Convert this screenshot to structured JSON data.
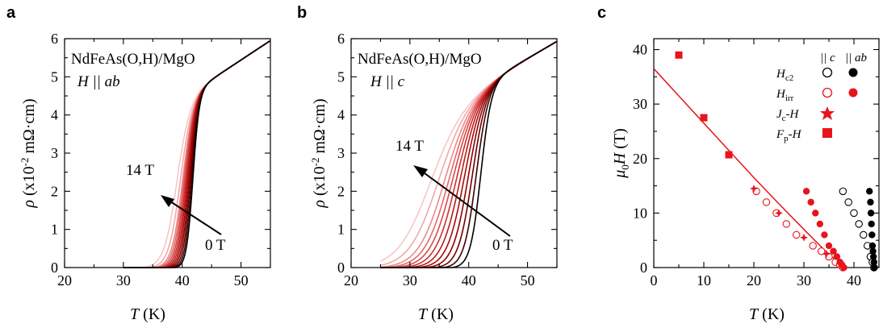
{
  "panels": [
    {
      "letter": "a",
      "title_line1": "NdFeAs(O,H)/MgO",
      "title_line2_prefix": "H",
      "title_line2_suffix": " || ab",
      "xlabel_var": "T",
      "xlabel_unit": " (K)",
      "ylabel_sym": "ρ",
      "ylabel_pre": " (x10",
      "ylabel_exp": "-2",
      "ylabel_post": " mΩ·cm)",
      "label_top": "14 T",
      "label_bottom": "0 T"
    },
    {
      "letter": "b",
      "title_line1": "NdFeAs(O,H)/MgO",
      "title_line2_prefix": "H",
      "title_line2_suffix": " || c",
      "xlabel_var": "T",
      "xlabel_unit": " (K)",
      "ylabel_sym": "ρ",
      "ylabel_pre": " (x10",
      "ylabel_exp": "-2",
      "ylabel_post": " mΩ·cm)",
      "label_top": "14 T",
      "label_bottom": "0 T"
    },
    {
      "letter": "c",
      "xlabel_var": "T",
      "xlabel_unit": " (K)",
      "ylabel_mu": "μ",
      "ylabel_sub": "0",
      "ylabel_H": "H",
      "ylabel_unit": " (T)",
      "legend_col_c": "|| c",
      "legend_col_ab": "|| ab",
      "legend_rows": [
        {
          "main": "H",
          "sub": "c2"
        },
        {
          "main": "H",
          "sub": "irr"
        },
        {
          "main": "J",
          "sub": "c",
          "tail": "-H"
        },
        {
          "main": "F",
          "sub": "p",
          "tail": "-H"
        }
      ]
    }
  ],
  "colors": {
    "black": "#000000",
    "red": "#e8141c",
    "field_gradient": [
      "#000000",
      "#3d0000",
      "#6e0000",
      "#8f0000",
      "#a80a0a",
      "#bd1a1a",
      "#cc2f2f",
      "#d84a4a",
      "#e36a6a",
      "#ec8a8a",
      "#f2a8a8",
      "#f7c6c6"
    ]
  },
  "chart_data": [
    {
      "type": "line",
      "panel": "a",
      "xlim": [
        20,
        55
      ],
      "ylim": [
        0,
        6
      ],
      "xticks": [
        20,
        30,
        40,
        50
      ],
      "yticks": [
        0,
        1,
        2,
        3,
        4,
        5,
        6
      ],
      "fields_T": [
        0,
        1,
        2,
        3,
        4,
        5,
        6,
        7,
        8,
        9,
        11,
        14
      ],
      "t_mid_K": [
        41.8,
        41.6,
        41.4,
        41.2,
        41.0,
        40.8,
        40.6,
        40.4,
        40.2,
        40.0,
        39.6,
        39.0
      ],
      "transition_width_K": [
        0.55,
        0.58,
        0.62,
        0.66,
        0.7,
        0.74,
        0.78,
        0.82,
        0.87,
        0.92,
        1.0,
        1.1
      ],
      "onset_K": 30,
      "normal_state": {
        "T_K": [
          44,
          55
        ],
        "rho": [
          4.6,
          5.72
        ]
      }
    },
    {
      "type": "line",
      "panel": "b",
      "xlim": [
        20,
        55
      ],
      "ylim": [
        0,
        6
      ],
      "xticks": [
        20,
        30,
        40,
        50
      ],
      "yticks": [
        0,
        1,
        2,
        3,
        4,
        5,
        6
      ],
      "fields_T": [
        0,
        1,
        2,
        3,
        4,
        5,
        6,
        7,
        8,
        9,
        11,
        14
      ],
      "t_mid_K": [
        42.0,
        41.2,
        40.5,
        39.8,
        39.1,
        38.4,
        37.7,
        37.0,
        36.3,
        35.5,
        34.3,
        32.8
      ],
      "transition_width_K": [
        0.9,
        1.05,
        1.2,
        1.35,
        1.5,
        1.65,
        1.8,
        1.95,
        2.1,
        2.25,
        2.5,
        2.8
      ],
      "onset_K": 25,
      "normal_state": {
        "T_K": [
          45,
          55
        ],
        "rho": [
          4.8,
          5.7
        ]
      }
    },
    {
      "type": "scatter",
      "panel": "c",
      "xlim": [
        0,
        45
      ],
      "ylim": [
        0,
        42
      ],
      "xticks": [
        0,
        10,
        20,
        30,
        40
      ],
      "yticks": [
        0,
        10,
        20,
        30,
        40
      ],
      "series": [
        {
          "name": "Hc2 || c",
          "marker": "open-circle",
          "color": "black",
          "points": [
            [
              37.8,
              14
            ],
            [
              38.9,
              12
            ],
            [
              40.0,
              10
            ],
            [
              41.0,
              8
            ],
            [
              41.9,
              6
            ],
            [
              42.7,
              4
            ],
            [
              43.3,
              2
            ],
            [
              43.7,
              1
            ],
            [
              44.0,
              0
            ]
          ]
        },
        {
          "name": "Hc2 || ab",
          "marker": "filled-circle",
          "color": "black",
          "points": [
            [
              43.1,
              14
            ],
            [
              43.3,
              12
            ],
            [
              43.4,
              10
            ],
            [
              43.5,
              8
            ],
            [
              43.6,
              6
            ],
            [
              43.7,
              4
            ],
            [
              43.8,
              3
            ],
            [
              43.9,
              2
            ],
            [
              44.0,
              1
            ],
            [
              44.1,
              0
            ]
          ]
        },
        {
          "name": "Hirr || c",
          "marker": "open-circle",
          "color": "red",
          "points": [
            [
              20.5,
              14
            ],
            [
              22.5,
              12
            ],
            [
              24.5,
              10
            ],
            [
              26.5,
              8
            ],
            [
              28.5,
              6
            ],
            [
              31.8,
              4
            ],
            [
              33.5,
              3
            ],
            [
              35.0,
              2
            ],
            [
              36.3,
              1
            ],
            [
              37.2,
              0.5
            ],
            [
              37.8,
              0
            ]
          ]
        },
        {
          "name": "Hirr || ab",
          "marker": "filled-circle",
          "color": "red",
          "points": [
            [
              30.5,
              14
            ],
            [
              31.4,
              12
            ],
            [
              32.3,
              10
            ],
            [
              33.2,
              8
            ],
            [
              34.1,
              6
            ],
            [
              35.0,
              4
            ],
            [
              35.9,
              3
            ],
            [
              36.6,
              2
            ],
            [
              37.2,
              1
            ],
            [
              37.6,
              0.5
            ],
            [
              38.0,
              0
            ]
          ]
        },
        {
          "name": "Jc-H",
          "marker": "star",
          "color": "red",
          "points": [
            [
              20,
              14.5
            ],
            [
              25,
              10
            ],
            [
              30,
              5.5
            ],
            [
              34.5,
              2.5
            ],
            [
              37.5,
              0.2
            ]
          ]
        },
        {
          "name": "Fp-H",
          "marker": "filled-square",
          "color": "red",
          "points": [
            [
              5,
              39
            ],
            [
              10,
              27.5
            ],
            [
              15,
              20.7
            ]
          ]
        }
      ],
      "fit_line": {
        "color": "red",
        "points": [
          [
            0,
            36.5
          ],
          [
            5,
            31.5
          ],
          [
            10,
            26.5
          ],
          [
            15,
            21.5
          ],
          [
            20,
            16.5
          ],
          [
            25,
            11.7
          ],
          [
            30,
            7.0
          ],
          [
            34,
            3.3
          ],
          [
            37,
            0.8
          ],
          [
            38,
            0
          ]
        ]
      }
    }
  ]
}
